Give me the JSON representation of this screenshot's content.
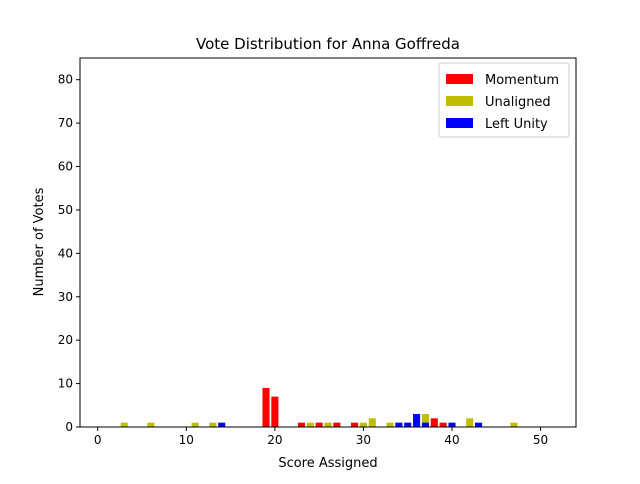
{
  "chart_data": {
    "type": "bar",
    "title": "Vote Distribution for Anna Goffreda",
    "xlabel": "Score Assigned",
    "ylabel": "Number of Votes",
    "xlim": [
      -2,
      54
    ],
    "ylim": [
      0,
      85
    ],
    "xticks": [
      0,
      10,
      20,
      30,
      40,
      50
    ],
    "yticks": [
      0,
      10,
      20,
      30,
      40,
      50,
      60,
      70,
      80
    ],
    "legend_position": "top-right",
    "grid": false,
    "series": [
      {
        "name": "Momentum",
        "color": "#ff0000",
        "points": [
          {
            "x": 19,
            "y": 9
          },
          {
            "x": 20,
            "y": 7
          },
          {
            "x": 23,
            "y": 1
          },
          {
            "x": 25,
            "y": 1
          },
          {
            "x": 27,
            "y": 1
          },
          {
            "x": 29,
            "y": 1
          },
          {
            "x": 38,
            "y": 2
          },
          {
            "x": 39,
            "y": 1
          }
        ]
      },
      {
        "name": "Unaligned",
        "color": "#bfbf00",
        "points": [
          {
            "x": 3,
            "y": 1
          },
          {
            "x": 6,
            "y": 1
          },
          {
            "x": 11,
            "y": 1
          },
          {
            "x": 13,
            "y": 1
          },
          {
            "x": 24,
            "y": 1
          },
          {
            "x": 26,
            "y": 1
          },
          {
            "x": 30,
            "y": 1
          },
          {
            "x": 31,
            "y": 2
          },
          {
            "x": 33,
            "y": 1
          },
          {
            "x": 37,
            "y": 3
          },
          {
            "x": 42,
            "y": 2
          },
          {
            "x": 47,
            "y": 1
          }
        ]
      },
      {
        "name": "Left Unity",
        "color": "#0000ff",
        "points": [
          {
            "x": 14,
            "y": 1
          },
          {
            "x": 34,
            "y": 1
          },
          {
            "x": 35,
            "y": 1
          },
          {
            "x": 36,
            "y": 3
          },
          {
            "x": 37,
            "y": 1
          },
          {
            "x": 40,
            "y": 1
          },
          {
            "x": 43,
            "y": 1
          }
        ]
      }
    ]
  }
}
